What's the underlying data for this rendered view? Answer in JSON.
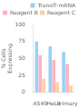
{
  "chart_data": {
    "type": "bar",
    "categories": [
      "A549",
      "HeLa",
      "Primary"
    ],
    "series": [
      {
        "name": "TransIT-mRNA",
        "values": [
          75,
          68,
          60
        ]
      },
      {
        "name": "Reagent B",
        "values": [
          55,
          48,
          42
        ]
      },
      {
        "name": "Reagent C",
        "values": [
          20,
          15,
          10
        ]
      }
    ],
    "y_label": "% Cells\nExpressing",
    "ylim": [
      0,
      100
    ],
    "yticks": [
      0,
      25,
      50,
      75,
      100
    ],
    "grid": false,
    "legend": "upper right"
  }
}
